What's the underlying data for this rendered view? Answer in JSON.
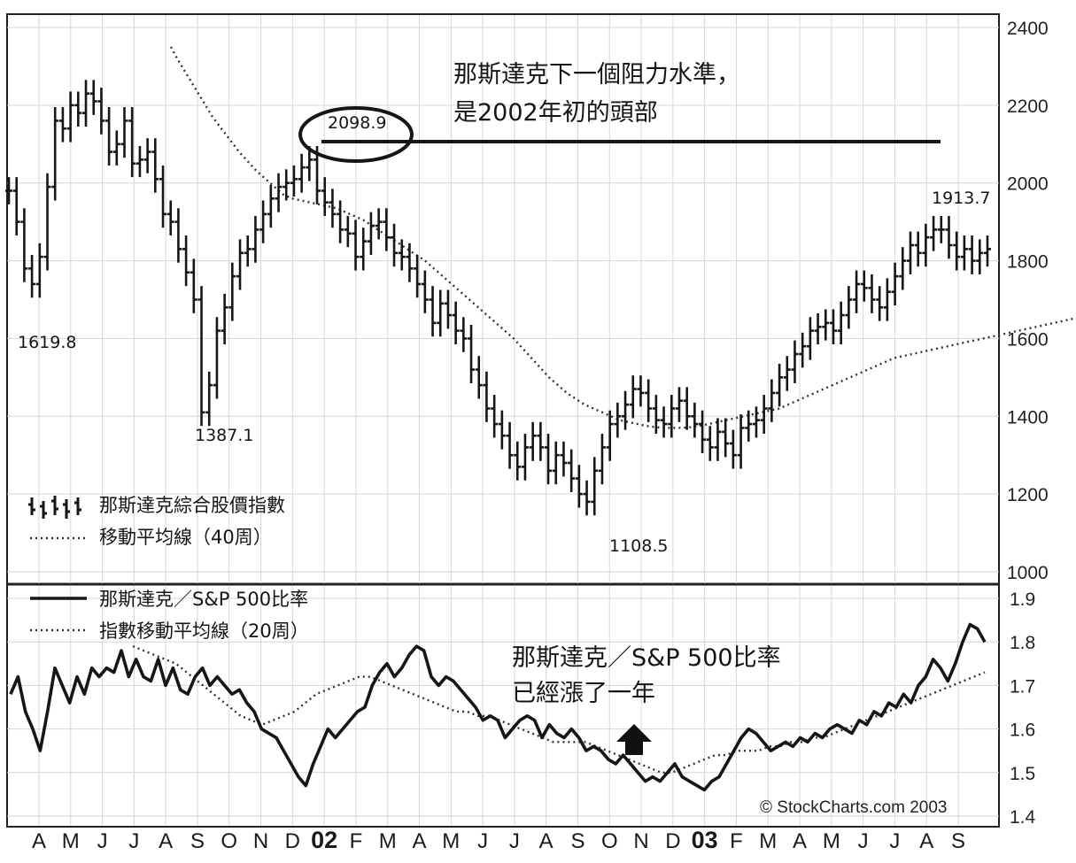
{
  "chart_data": [
    {
      "type": "line",
      "panel": "top",
      "ylim": [
        1000,
        2400
      ],
      "yticks": [
        1000,
        1200,
        1400,
        1600,
        1800,
        2000,
        2200,
        2400
      ],
      "grid": true,
      "legend_position": "bottom-left",
      "series": [
        {
          "name": "那斯達克綜合股價指數",
          "style": "price-bars",
          "x": [
            0,
            1,
            2,
            3,
            4,
            5,
            6,
            7,
            8,
            9,
            10,
            11,
            12,
            13,
            14,
            15,
            16,
            17,
            18,
            19,
            20,
            21,
            22,
            23,
            24,
            25,
            26,
            27,
            28,
            29,
            30,
            31,
            32,
            33,
            34,
            35,
            36,
            37,
            38,
            39,
            40,
            41,
            42,
            43,
            44,
            45,
            46,
            47,
            48,
            49,
            50,
            51,
            52,
            53,
            54,
            55,
            56,
            57,
            58,
            59,
            60,
            61,
            62,
            63,
            64,
            65,
            66,
            67,
            68,
            69,
            70,
            71,
            72,
            73,
            74,
            75,
            76,
            77,
            78,
            79,
            80,
            81,
            82,
            83,
            84,
            85,
            86,
            87,
            88,
            89,
            90,
            91,
            92,
            93,
            94,
            95,
            96,
            97,
            98,
            99,
            100,
            101,
            102,
            103,
            104,
            105,
            106,
            107,
            108,
            109,
            110,
            111,
            112,
            113,
            114,
            115,
            116,
            117,
            118,
            119,
            120,
            121,
            122,
            123,
            124,
            125,
            126,
            127
          ],
          "values": [
            1980,
            1900,
            1780,
            1740,
            1810,
            1990,
            2160,
            2140,
            2200,
            2180,
            2230,
            2210,
            2160,
            2080,
            2100,
            2160,
            2050,
            2060,
            2080,
            2010,
            1920,
            1900,
            1830,
            1770,
            1700,
            1410,
            1480,
            1620,
            1680,
            1760,
            1820,
            1830,
            1880,
            1920,
            1960,
            1990,
            2000,
            2010,
            2040,
            2060,
            1980,
            1950,
            1920,
            1880,
            1870,
            1810,
            1850,
            1890,
            1900,
            1860,
            1820,
            1810,
            1780,
            1740,
            1700,
            1640,
            1690,
            1660,
            1620,
            1600,
            1520,
            1480,
            1420,
            1380,
            1350,
            1300,
            1270,
            1320,
            1350,
            1320,
            1260,
            1300,
            1280,
            1240,
            1200,
            1180,
            1260,
            1320,
            1380,
            1400,
            1430,
            1470,
            1460,
            1420,
            1390,
            1380,
            1420,
            1440,
            1400,
            1380,
            1340,
            1320,
            1360,
            1330,
            1300,
            1370,
            1380,
            1390,
            1420,
            1460,
            1500,
            1520,
            1560,
            1580,
            1620,
            1630,
            1640,
            1620,
            1660,
            1700,
            1740,
            1730,
            1700,
            1680,
            1720,
            1760,
            1800,
            1840,
            1820,
            1860,
            1880,
            1880,
            1840,
            1810,
            1830,
            1800,
            1820,
            1830
          ]
        },
        {
          "name": "移動平均線(40周)",
          "style": "dotted",
          "x": [
            43,
            50,
            58,
            66,
            74,
            82,
            90,
            100,
            110,
            120,
            130,
            140,
            150,
            160,
            170,
            180,
            190,
            200,
            210,
            220,
            230,
            240,
            250,
            260,
            270,
            280,
            290,
            300,
            310,
            320,
            330,
            340,
            350,
            360,
            370,
            380,
            390,
            400,
            410,
            420,
            430,
            440,
            450,
            460,
            470,
            480,
            490,
            500,
            510,
            520,
            530,
            540,
            550,
            560,
            570,
            580,
            590,
            600,
            610,
            620,
            630,
            640,
            650,
            660,
            670,
            680,
            690,
            700,
            710,
            720,
            730,
            740,
            750,
            760,
            770,
            780,
            790,
            800,
            810,
            820,
            830,
            840,
            850,
            860,
            870,
            880,
            890,
            900,
            910,
            920,
            930,
            940,
            950,
            960,
            970,
            980,
            990,
            1000,
            1010,
            1020,
            1030,
            1040,
            1050,
            1060,
            1070,
            1080,
            1090,
            1100,
            1110
          ],
          "values": [
            2350,
            2320,
            2290,
            2260,
            2230,
            2200,
            2170,
            2140,
            2110,
            2080,
            2055,
            2030,
            2010,
            1990,
            1970,
            1960,
            1955,
            1950,
            1945,
            1940,
            1935,
            1925,
            1915,
            1905,
            1890,
            1875,
            1860,
            1845,
            1830,
            1815,
            1800,
            1780,
            1760,
            1740,
            1720,
            1700,
            1680,
            1660,
            1640,
            1620,
            1600,
            1575,
            1550,
            1525,
            1500,
            1480,
            1460,
            1445,
            1430,
            1420,
            1410,
            1400,
            1390,
            1385,
            1380,
            1375,
            1372,
            1370,
            1370,
            1370,
            1372,
            1375,
            1380,
            1385,
            1390,
            1395,
            1400,
            1405,
            1410,
            1415,
            1420,
            1430,
            1440,
            1450,
            1460,
            1470,
            1480,
            1490,
            1500,
            1510,
            1520,
            1530,
            1540,
            1550,
            1555,
            1560,
            1565,
            1570,
            1575,
            1580,
            1585,
            1590,
            1595,
            1600,
            1605,
            1610,
            1615,
            1620,
            1625,
            1630,
            1635,
            1640,
            1645,
            1650,
            1655,
            1660,
            1665,
            1670,
            1675
          ]
        }
      ],
      "data_labels": [
        {
          "text": "1619.8",
          "value": 1619.8
        },
        {
          "text": "1387.1",
          "value": 1387.1
        },
        {
          "text": "2098.9",
          "value": 2098.9
        },
        {
          "text": "1108.5",
          "value": 1108.5
        },
        {
          "text": "1913.7",
          "value": 1913.7
        }
      ],
      "annotations": [
        {
          "text_lines": [
            "那斯達克下一個阻力水準，",
            "是2002年初的頭部"
          ],
          "level": 2098.9
        }
      ]
    },
    {
      "type": "line",
      "panel": "bottom",
      "ylim": [
        1.4,
        1.9
      ],
      "yticks": [
        "1.4",
        "1.5",
        "1.6",
        "1.7",
        "1.8",
        "1.9"
      ],
      "grid": true,
      "legend_position": "top-left",
      "series": [
        {
          "name": "那斯達克/S&P 500比率",
          "style": "solid",
          "values": [
            1.68,
            1.72,
            1.64,
            1.6,
            1.55,
            1.64,
            1.74,
            1.7,
            1.66,
            1.72,
            1.68,
            1.74,
            1.72,
            1.74,
            1.73,
            1.78,
            1.72,
            1.76,
            1.72,
            1.71,
            1.76,
            1.7,
            1.74,
            1.69,
            1.68,
            1.72,
            1.74,
            1.7,
            1.72,
            1.7,
            1.68,
            1.69,
            1.66,
            1.64,
            1.6,
            1.59,
            1.58,
            1.55,
            1.52,
            1.49,
            1.47,
            1.52,
            1.56,
            1.6,
            1.58,
            1.6,
            1.62,
            1.64,
            1.65,
            1.7,
            1.73,
            1.75,
            1.72,
            1.74,
            1.77,
            1.79,
            1.78,
            1.72,
            1.7,
            1.72,
            1.71,
            1.69,
            1.67,
            1.65,
            1.62,
            1.63,
            1.62,
            1.58,
            1.6,
            1.62,
            1.63,
            1.62,
            1.58,
            1.61,
            1.59,
            1.58,
            1.6,
            1.58,
            1.55,
            1.56,
            1.55,
            1.53,
            1.52,
            1.54,
            1.52,
            1.5,
            1.48,
            1.49,
            1.48,
            1.5,
            1.52,
            1.49,
            1.48,
            1.47,
            1.46,
            1.48,
            1.49,
            1.52,
            1.55,
            1.58,
            1.6,
            1.59,
            1.57,
            1.55,
            1.56,
            1.57,
            1.56,
            1.58,
            1.57,
            1.59,
            1.58,
            1.6,
            1.61,
            1.6,
            1.59,
            1.62,
            1.61,
            1.64,
            1.63,
            1.66,
            1.65,
            1.68,
            1.66,
            1.7,
            1.72,
            1.76,
            1.74,
            1.71,
            1.75,
            1.8,
            1.84,
            1.83,
            1.8
          ],
          "series_range_note": ""
        },
        {
          "name": "指數移動平均線(20周)",
          "style": "dotted",
          "values": [
            1.79,
            1.78,
            1.77,
            1.76,
            1.75,
            1.73,
            1.71,
            1.69,
            1.67,
            1.65,
            1.63,
            1.62,
            1.61,
            1.62,
            1.63,
            1.64,
            1.66,
            1.68,
            1.69,
            1.7,
            1.71,
            1.72,
            1.72,
            1.71,
            1.7,
            1.69,
            1.68,
            1.67,
            1.66,
            1.65,
            1.64,
            1.64,
            1.63,
            1.63,
            1.62,
            1.61,
            1.6,
            1.59,
            1.58,
            1.57,
            1.57,
            1.57,
            1.57,
            1.56,
            1.55,
            1.54,
            1.53,
            1.52,
            1.51,
            1.5,
            1.5,
            1.51,
            1.52,
            1.53,
            1.54,
            1.54,
            1.55,
            1.55,
            1.55,
            1.56,
            1.56,
            1.57,
            1.57,
            1.58,
            1.58,
            1.59,
            1.6,
            1.61,
            1.62,
            1.63,
            1.64,
            1.65,
            1.66,
            1.67,
            1.68,
            1.69,
            1.7,
            1.71,
            1.72,
            1.73
          ]
        }
      ],
      "annotations": [
        {
          "text_lines": [
            "那斯達克/S&P 500比率",
            "已經漲了一年"
          ]
        }
      ]
    }
  ],
  "x_axis": {
    "labels": [
      "A",
      "M",
      "J",
      "J",
      "A",
      "S",
      "O",
      "N",
      "D",
      "02",
      "F",
      "M",
      "A",
      "M",
      "J",
      "J",
      "A",
      "S",
      "O",
      "N",
      "D",
      "03",
      "F",
      "M",
      "A",
      "M",
      "J",
      "J",
      "A",
      "S"
    ],
    "bold": [
      "02",
      "03"
    ]
  },
  "labels": {
    "peak_1619": "1619.8",
    "peak_1387": "1387.1",
    "peak_2098": "2098.9",
    "peak_1108": "1108.5",
    "peak_1913": "1913.7",
    "resistance_line1": "那斯達克下一個阻力水準，",
    "resistance_line2": "是2002年初的頭部",
    "ratio_note_line1": "那斯達克／S&P 500比率",
    "ratio_note_line2": "已經漲了一年",
    "legend_price": "那斯達克綜合股價指數",
    "legend_ma40": "移動平均線（40周）",
    "legend_ratio": "那斯達克／S&P 500比率",
    "legend_ema20": "指數移動平均線（20周）",
    "credit": "© StockCharts.com 2003"
  },
  "colors": {
    "line": "#161616",
    "grid": "#d6d6d6",
    "frame": "#222222"
  }
}
